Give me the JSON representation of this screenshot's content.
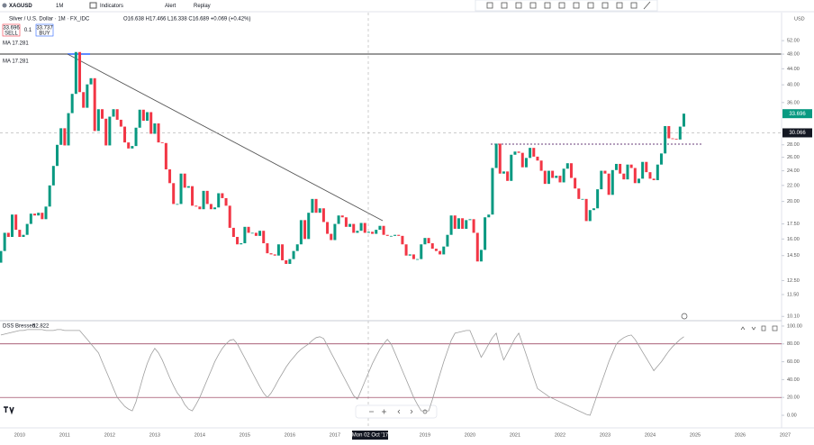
{
  "toolbar": {
    "symbol": "XAGUSD",
    "interval": "1M",
    "indicators": "Indicators",
    "alert": "Alert",
    "replay": "Replay",
    "currency": "USD"
  },
  "legend": {
    "ohlc": "O16.638 H17.466 L16.338 C16.689 +0.069 (+0.42%)",
    "sell_price": "33.696",
    "sell": "SELL",
    "spread": "0.1",
    "buy_price": "33.737",
    "buy": "BUY",
    "ma1": "MA 17.281",
    "ma2": "MA 17.281"
  },
  "crosshair": {
    "date": "Mon 02 Oct '17",
    "price": 30.066
  },
  "chart_data": [
    {
      "type": "candlestick",
      "title": "Silver / U.S. Dollar · 1M · FX_IDC",
      "log_scale": true,
      "up_color": "#089981",
      "down_color": "#f23645",
      "last_price": 33.696,
      "categories": [
        null,
        null,
        null,
        null,
        null,
        "2010",
        null,
        null,
        null,
        null,
        null,
        null,
        null,
        null,
        null,
        null,
        null,
        "2011",
        null,
        null,
        null,
        null,
        null,
        null,
        null,
        null,
        null,
        null,
        null,
        "2012",
        null,
        null,
        null,
        null,
        null,
        null,
        null,
        null,
        null,
        null,
        null,
        "2013",
        null,
        null,
        null,
        null,
        null,
        null,
        null,
        null,
        null,
        null,
        null,
        "2014",
        null,
        null,
        null,
        null,
        null,
        null,
        null,
        null,
        null,
        null,
        null,
        "2015",
        null,
        null,
        null,
        null,
        null,
        null,
        null,
        null,
        null,
        null,
        null,
        "2016",
        null,
        null,
        null,
        null,
        null,
        null,
        null,
        null,
        null,
        null,
        null,
        "2017",
        null,
        null,
        null,
        null,
        null,
        null,
        null,
        null,
        null,
        null,
        null,
        null,
        null,
        null,
        null,
        null,
        null,
        null,
        null,
        null,
        null,
        null,
        null,
        "2019",
        null,
        null,
        null,
        null,
        null,
        null,
        null,
        null,
        null,
        null,
        null,
        "2020",
        null,
        null,
        null,
        null,
        null,
        null,
        null,
        null,
        null,
        null,
        null,
        "2021",
        null,
        null,
        null,
        null,
        null,
        null,
        null,
        null,
        null,
        null,
        null,
        "2022",
        null,
        null,
        null,
        null,
        null,
        null,
        null,
        null,
        null,
        null,
        null,
        "2023",
        null,
        null,
        null,
        null,
        null,
        null,
        null,
        null,
        null,
        null,
        null,
        "2024",
        null,
        null,
        null,
        null,
        null,
        null,
        null,
        null,
        null,
        null,
        null,
        "2025",
        null,
        null,
        null,
        null,
        null,
        null,
        null,
        null,
        null,
        null,
        null,
        "2026",
        null,
        null,
        null,
        null,
        null,
        null,
        null,
        null,
        null,
        null,
        null,
        "2027"
      ],
      "open": [
        13.9,
        14.9,
        16.6,
        16.2,
        18.5,
        16.9,
        16.2,
        16.4,
        17.5,
        18.6,
        18.4,
        18.7,
        18.0,
        19.4,
        22.0,
        24.7,
        28.0,
        30.9,
        27.9,
        33.8,
        37.9,
        48.6,
        38.3,
        34.9,
        40.1,
        41.6,
        30.4,
        34.6,
        32.7,
        27.9,
        33.1,
        34.6,
        32.5,
        31.2,
        28.4,
        27.4,
        27.8,
        31.0,
        34.5,
        32.3,
        34.0,
        29.9,
        31.8,
        28.4,
        28.3,
        24.2,
        22.3,
        19.7,
        19.7,
        23.6,
        21.7,
        21.9,
        19.5,
        19.4,
        19.1,
        21.3,
        19.7,
        19.1,
        19.3,
        21.0,
        20.4,
        19.5,
        17.1,
        16.2,
        15.5,
        15.6,
        17.2,
        16.6,
        16.6,
        16.3,
        16.8,
        15.6,
        14.7,
        14.6,
        14.5,
        15.5,
        14.1,
        13.8,
        14.2,
        14.9,
        15.5,
        17.9,
        16.0,
        18.7,
        20.3,
        18.7,
        19.2,
        17.7,
        16.5,
        15.9,
        17.5,
        18.4,
        18.2,
        17.2,
        17.5,
        16.6,
        16.8,
        17.6,
        16.6,
        16.7,
        16.5,
        16.9,
        17.3,
        16.4,
        16.3,
        16.3,
        16.4,
        16.3,
        15.5,
        14.5,
        14.6,
        14.2,
        14.2,
        15.5,
        16.1,
        15.6,
        15.1,
        14.9,
        14.6,
        15.3,
        16.4,
        18.4,
        17.0,
        18.1,
        17.0,
        17.9,
        18.0,
        16.6,
        14.0,
        15.0,
        18.2,
        18.5,
        24.4,
        28.2,
        23.6,
        23.9,
        22.6,
        26.4,
        26.9,
        26.7,
        24.5,
        25.9,
        27.5,
        26.1,
        25.5,
        24.0,
        22.2,
        24.0,
        23.0,
        23.3,
        22.4,
        24.3,
        25.1,
        23.0,
        21.6,
        20.3,
        20.3,
        17.8,
        19.0,
        19.2,
        21.5,
        24.0,
        23.6,
        20.8,
        24.1,
        25.0,
        23.6,
        22.8,
        24.9,
        24.4,
        22.3,
        22.9,
        25.3,
        23.8,
        22.9,
        22.7,
        24.9,
        26.6,
        31.3,
        29.1,
        29.0,
        28.9,
        31.2,
        null,
        null,
        null,
        null,
        null,
        null,
        null,
        null,
        null,
        null,
        null,
        null,
        null,
        null,
        null,
        null,
        null,
        null,
        null,
        null,
        null,
        null,
        null,
        null,
        null,
        null,
        null
      ],
      "close": [
        14.9,
        16.6,
        16.2,
        18.5,
        16.9,
        16.2,
        16.4,
        17.5,
        18.6,
        18.4,
        18.7,
        18.0,
        19.4,
        22.0,
        24.7,
        28.0,
        30.9,
        27.9,
        33.8,
        37.9,
        48.6,
        38.3,
        34.9,
        40.1,
        41.6,
        30.4,
        34.6,
        32.7,
        27.9,
        33.1,
        34.6,
        32.5,
        31.2,
        28.4,
        27.4,
        27.8,
        31.0,
        34.5,
        32.3,
        34.0,
        29.9,
        31.8,
        28.4,
        28.3,
        24.2,
        22.3,
        19.7,
        19.7,
        23.6,
        21.7,
        21.9,
        19.5,
        19.4,
        19.1,
        21.3,
        19.7,
        19.1,
        19.3,
        21.0,
        20.4,
        19.5,
        17.1,
        16.2,
        15.5,
        15.6,
        17.2,
        16.6,
        16.6,
        16.3,
        16.8,
        15.6,
        14.7,
        14.6,
        14.5,
        15.5,
        14.1,
        13.8,
        14.2,
        14.9,
        15.5,
        17.9,
        16.0,
        18.7,
        20.3,
        18.7,
        19.2,
        17.7,
        16.5,
        15.9,
        17.5,
        18.4,
        18.2,
        17.2,
        17.5,
        16.6,
        16.8,
        17.6,
        16.6,
        16.7,
        16.5,
        16.9,
        17.3,
        16.4,
        16.3,
        16.3,
        16.4,
        16.3,
        15.5,
        14.5,
        14.6,
        14.2,
        14.2,
        15.5,
        16.1,
        15.6,
        15.1,
        14.9,
        14.6,
        15.3,
        16.4,
        18.4,
        17.0,
        18.1,
        17.0,
        17.9,
        18.0,
        16.6,
        14.0,
        15.0,
        18.2,
        18.5,
        24.4,
        28.2,
        23.6,
        23.9,
        22.6,
        26.4,
        26.9,
        26.7,
        24.5,
        25.9,
        27.5,
        26.1,
        25.5,
        24.0,
        22.2,
        24.0,
        23.0,
        23.3,
        22.4,
        24.3,
        25.1,
        23.0,
        21.6,
        20.3,
        20.3,
        17.8,
        19.0,
        19.2,
        21.5,
        24.0,
        23.6,
        20.8,
        24.1,
        25.0,
        23.6,
        22.8,
        24.9,
        24.4,
        22.3,
        22.9,
        25.3,
        23.8,
        22.9,
        22.7,
        24.9,
        26.6,
        31.3,
        29.1,
        29.0,
        28.9,
        31.2,
        33.7,
        null,
        null,
        null,
        null,
        null,
        null,
        null,
        null,
        null,
        null,
        null,
        null,
        null,
        null,
        null,
        null,
        null,
        null,
        null,
        null,
        null,
        null,
        null,
        null,
        null,
        null,
        null
      ],
      "ylim": [
        9.9,
        61.1
      ],
      "yticks": [
        {
          "value": 52,
          "label": "52.00"
        },
        {
          "value": 48,
          "label": "48.00"
        },
        {
          "value": 44,
          "label": "44.00"
        },
        {
          "value": 40,
          "label": "40.00"
        },
        {
          "value": 36,
          "label": "36.00"
        },
        {
          "value": 28,
          "label": "28.00"
        },
        {
          "value": 26,
          "label": "26.00"
        },
        {
          "value": 24,
          "label": "24.00"
        },
        {
          "value": 22,
          "label": "22.00"
        },
        {
          "value": 20,
          "label": "20.00"
        },
        {
          "value": 17.5,
          "label": "17.50"
        },
        {
          "value": 16,
          "label": "16.00"
        },
        {
          "value": 14.5,
          "label": "14.50"
        },
        {
          "value": 12.5,
          "label": "12.50"
        },
        {
          "value": 11.5,
          "label": "11.50"
        },
        {
          "value": 10.1,
          "label": "10.10"
        }
      ]
    },
    {
      "type": "line",
      "title": "DSS Bressert",
      "value_text": "52.822",
      "color": "#9e9e9e",
      "level_color": "#8e2b4a",
      "levels": [
        80,
        20
      ],
      "values": [
        90,
        91,
        92,
        93,
        94,
        95,
        95,
        96,
        96,
        96,
        96,
        96,
        95,
        95,
        95,
        96,
        96,
        95,
        95,
        95,
        95,
        95,
        90,
        85,
        80,
        75,
        70,
        60,
        50,
        40,
        30,
        20,
        15,
        10,
        7,
        5,
        15,
        30,
        45,
        58,
        68,
        75,
        70,
        62,
        52,
        42,
        33,
        25,
        20,
        12,
        7,
        5,
        12,
        20,
        30,
        40,
        50,
        60,
        68,
        75,
        80,
        84,
        85,
        80,
        72,
        64,
        56,
        48,
        40,
        32,
        25,
        20,
        25,
        32,
        40,
        47,
        54,
        60,
        65,
        70,
        74,
        77,
        80,
        84,
        87,
        88,
        86,
        78,
        70,
        62,
        54,
        46,
        38,
        30,
        22,
        18,
        28,
        38,
        48,
        58,
        66,
        74,
        80,
        85,
        80,
        70,
        60,
        50,
        40,
        30,
        20,
        12,
        5,
        5,
        5,
        18,
        32,
        46,
        60,
        72,
        84,
        92,
        93,
        94,
        95,
        95,
        85,
        75,
        65,
        72,
        80,
        87,
        92,
        75,
        62,
        70,
        78,
        86,
        92,
        80,
        68,
        55,
        42,
        30,
        27,
        24,
        21,
        19,
        17,
        15,
        13,
        11,
        9,
        7,
        5,
        3,
        1,
        0,
        12,
        24,
        36,
        48,
        60,
        70,
        80,
        84,
        87,
        89,
        90,
        85,
        78,
        71,
        64,
        57,
        50,
        55,
        60,
        66,
        72,
        77,
        81,
        85,
        88,
        null,
        null,
        null,
        null,
        null,
        null,
        null,
        null,
        null,
        null,
        null,
        null,
        null,
        null,
        null,
        null,
        null,
        null,
        null,
        null,
        null,
        null,
        null,
        null,
        null,
        null,
        null
      ],
      "ylim": [
        -2,
        105
      ],
      "yticks": [
        {
          "value": 100,
          "label": "100.00"
        },
        {
          "value": 80,
          "label": "80.00"
        },
        {
          "value": 60,
          "label": "60.00"
        },
        {
          "value": 40,
          "label": "40.00"
        },
        {
          "value": 20,
          "label": "20.00"
        },
        {
          "value": 0,
          "label": "0.00"
        }
      ]
    }
  ]
}
